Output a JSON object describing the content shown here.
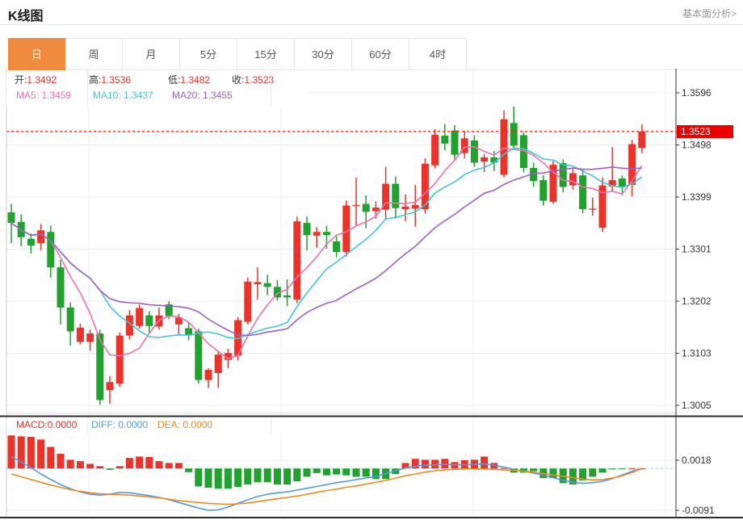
{
  "header": {
    "title": "K线图",
    "link": "基本面分析>"
  },
  "tabs": [
    {
      "label": "日",
      "active": true
    },
    {
      "label": "周",
      "active": false
    },
    {
      "label": "月",
      "active": false
    },
    {
      "label": "5分",
      "active": false
    },
    {
      "label": "15分",
      "active": false
    },
    {
      "label": "30分",
      "active": false
    },
    {
      "label": "60分",
      "active": false
    },
    {
      "label": "4时",
      "active": false
    }
  ],
  "info_bar": {
    "open_label": "开:",
    "open_value": "1.3492",
    "high_label": "高:",
    "high_value": "1.3536",
    "low_label": "低:",
    "low_value": "1.3482",
    "close_label": "收:",
    "close_value": "1.3523",
    "ma5": "MA5: 1.3459",
    "ma10": "MA10: 1.3437",
    "ma20": "MA20: 1.3455"
  },
  "macd_bar": {
    "macd": "MACD:0.0000",
    "diff": "DIFF: 0.0000",
    "dea": "DEA: 0.0000"
  },
  "price_tag": "1.3523",
  "chart_data": {
    "type": "candlestick+macd",
    "title": "K线图",
    "price_axis": {
      "ticks": [
        "1.3596",
        "1.3498",
        "1.3399",
        "1.3301",
        "1.3202",
        "1.3103",
        "1.3005"
      ],
      "max": 1.3596,
      "min": 1.3005
    },
    "macd_axis": {
      "ticks": [
        "0.0018",
        "-0.0091"
      ],
      "values": [
        0.0018,
        -0.0091
      ]
    },
    "current_price": 1.3523,
    "last_candle": {
      "open": 1.3492,
      "high": 1.3536,
      "low": 1.3482,
      "close": 1.3523
    },
    "ma_periods": [
      5,
      10,
      20
    ],
    "candles": [
      [
        1.337,
        1.3386,
        1.3312,
        1.335
      ],
      [
        1.3352,
        1.3366,
        1.3306,
        1.3323
      ],
      [
        1.332,
        1.333,
        1.3292,
        1.3307
      ],
      [
        1.3312,
        1.3348,
        1.3298,
        1.3336
      ],
      [
        1.3333,
        1.3345,
        1.3246,
        1.3266
      ],
      [
        1.3266,
        1.328,
        1.3158,
        1.319
      ],
      [
        1.319,
        1.32,
        1.3118,
        1.3145
      ],
      [
        1.3125,
        1.316,
        1.312,
        1.3152
      ],
      [
        1.3125,
        1.3148,
        1.3108,
        1.3141
      ],
      [
        1.3141,
        1.3148,
        1.3006,
        1.3015
      ],
      [
        1.3034,
        1.306,
        1.3008,
        1.3049
      ],
      [
        1.3046,
        1.3143,
        1.304,
        1.3137
      ],
      [
        1.3137,
        1.3185,
        1.313,
        1.3175
      ],
      [
        1.3155,
        1.3196,
        1.315,
        1.3189
      ],
      [
        1.3175,
        1.3183,
        1.314,
        1.3155
      ],
      [
        1.3154,
        1.319,
        1.3148,
        1.3175
      ],
      [
        1.3196,
        1.3202,
        1.3168,
        1.3174
      ],
      [
        1.3158,
        1.3178,
        1.3138,
        1.3171
      ],
      [
        1.3151,
        1.3162,
        1.3128,
        1.3137
      ],
      [
        1.3145,
        1.315,
        1.3046,
        1.3053
      ],
      [
        1.3053,
        1.3075,
        1.3038,
        1.3072
      ],
      [
        1.3066,
        1.3108,
        1.3038,
        1.3101
      ],
      [
        1.3091,
        1.3112,
        1.3075,
        1.3104
      ],
      [
        1.3099,
        1.3172,
        1.309,
        1.3166
      ],
      [
        1.3163,
        1.3247,
        1.3158,
        1.3239
      ],
      [
        1.3234,
        1.3266,
        1.3205,
        1.3238
      ],
      [
        1.3236,
        1.3252,
        1.3213,
        1.3229
      ],
      [
        1.3229,
        1.3242,
        1.3203,
        1.3209
      ],
      [
        1.3213,
        1.3243,
        1.3193,
        1.3209
      ],
      [
        1.3205,
        1.3362,
        1.3198,
        1.3353
      ],
      [
        1.335,
        1.3362,
        1.3298,
        1.3327
      ],
      [
        1.3326,
        1.3342,
        1.3303,
        1.3333
      ],
      [
        1.3333,
        1.3345,
        1.3301,
        1.3327
      ],
      [
        1.3315,
        1.3325,
        1.3285,
        1.3295
      ],
      [
        1.3295,
        1.3392,
        1.3286,
        1.3383
      ],
      [
        1.3383,
        1.3436,
        1.3345,
        1.3384
      ],
      [
        1.3386,
        1.3402,
        1.334,
        1.3371
      ],
      [
        1.3372,
        1.3391,
        1.3358,
        1.3379
      ],
      [
        1.3375,
        1.3456,
        1.3358,
        1.3424
      ],
      [
        1.3424,
        1.3438,
        1.3358,
        1.3378
      ],
      [
        1.3376,
        1.3404,
        1.3353,
        1.3381
      ],
      [
        1.3377,
        1.3422,
        1.3343,
        1.3384
      ],
      [
        1.3376,
        1.3472,
        1.3368,
        1.3462
      ],
      [
        1.3459,
        1.3527,
        1.3453,
        1.3517
      ],
      [
        1.3515,
        1.3537,
        1.3487,
        1.35
      ],
      [
        1.3525,
        1.3535,
        1.347,
        1.3479
      ],
      [
        1.3482,
        1.3524,
        1.3472,
        1.351
      ],
      [
        1.3506,
        1.3516,
        1.3456,
        1.3464
      ],
      [
        1.3466,
        1.348,
        1.3446,
        1.3474
      ],
      [
        1.3474,
        1.3486,
        1.3448,
        1.3464
      ],
      [
        1.3441,
        1.3563,
        1.3436,
        1.3546
      ],
      [
        1.3539,
        1.357,
        1.349,
        1.3496
      ],
      [
        1.3516,
        1.3522,
        1.3446,
        1.3454
      ],
      [
        1.3454,
        1.3464,
        1.3418,
        1.3429
      ],
      [
        1.3431,
        1.344,
        1.3383,
        1.3392
      ],
      [
        1.339,
        1.3467,
        1.3386,
        1.346
      ],
      [
        1.3463,
        1.347,
        1.3408,
        1.3418
      ],
      [
        1.3421,
        1.3452,
        1.3413,
        1.3444
      ],
      [
        1.344,
        1.345,
        1.3368,
        1.3376
      ],
      [
        1.3376,
        1.3398,
        1.3364,
        1.3377
      ],
      [
        1.3341,
        1.3436,
        1.3333,
        1.3421
      ],
      [
        1.3419,
        1.3493,
        1.341,
        1.3431
      ],
      [
        1.3434,
        1.344,
        1.3402,
        1.3419
      ],
      [
        1.3422,
        1.3507,
        1.34,
        1.3499
      ],
      [
        1.3492,
        1.3536,
        1.3482,
        1.3523
      ]
    ],
    "macd_histogram": [
      0.0072,
      0.007,
      0.0069,
      0.0063,
      0.0047,
      0.0032,
      0.0019,
      0.0016,
      0.001,
      0.0005,
      -0.0003,
      0.0005,
      0.0023,
      0.0026,
      0.0025,
      0.0016,
      0.0012,
      0.0012,
      -0.0008,
      -0.0039,
      -0.0042,
      -0.0044,
      -0.0044,
      -0.004,
      -0.0035,
      -0.003,
      -0.003,
      -0.0035,
      -0.0035,
      -0.0028,
      -0.0018,
      -0.001,
      -0.0015,
      -0.0013,
      -0.0015,
      -0.0018,
      -0.0018,
      -0.0023,
      -0.0023,
      -0.0012,
      0.0012,
      0.0021,
      0.0019,
      0.0019,
      0.0021,
      0.0014,
      0.0018,
      0.0019,
      0.0026,
      0.0012,
      0.0001,
      -0.0009,
      -0.0009,
      -0.0006,
      -0.0021,
      -0.0021,
      -0.0032,
      -0.0035,
      -0.0026,
      -0.0018,
      -0.0009,
      -0.0002,
      -0.0001,
      0.0,
      0.0
    ],
    "diff_line": [
      0.0026,
      0.0014,
      0.0002,
      -0.0012,
      -0.0024,
      -0.0035,
      -0.0044,
      -0.0051,
      -0.0056,
      -0.0058,
      -0.0056,
      -0.0052,
      -0.0053,
      -0.0056,
      -0.0059,
      -0.0063,
      -0.0068,
      -0.0074,
      -0.008,
      -0.0086,
      -0.0091,
      -0.009,
      -0.0084,
      -0.0076,
      -0.0068,
      -0.0061,
      -0.0056,
      -0.0053,
      -0.0051,
      -0.0047,
      -0.0043,
      -0.0039,
      -0.0035,
      -0.0031,
      -0.0028,
      -0.0024,
      -0.0021,
      -0.0017,
      -0.0011,
      -0.0005,
      0.0001,
      0.0005,
      0.0007,
      0.0008,
      0.0009,
      0.0008,
      0.0008,
      0.0009,
      0.001,
      0.0007,
      0.0003,
      -0.0002,
      -0.0006,
      -0.001,
      -0.0015,
      -0.002,
      -0.0026,
      -0.003,
      -0.0032,
      -0.0031,
      -0.0028,
      -0.0022,
      -0.0014,
      -0.0006,
      0.0
    ],
    "dea_line": [
      -0.0012,
      -0.0018,
      -0.0024,
      -0.003,
      -0.0036,
      -0.0041,
      -0.0046,
      -0.005,
      -0.0053,
      -0.0055,
      -0.0056,
      -0.0057,
      -0.0058,
      -0.006,
      -0.0062,
      -0.0064,
      -0.0067,
      -0.007,
      -0.0072,
      -0.0074,
      -0.0076,
      -0.0077,
      -0.0078,
      -0.0077,
      -0.0075,
      -0.0072,
      -0.0069,
      -0.0066,
      -0.0063,
      -0.006,
      -0.0056,
      -0.0052,
      -0.0048,
      -0.0045,
      -0.0041,
      -0.0038,
      -0.0034,
      -0.003,
      -0.0026,
      -0.0021,
      -0.0016,
      -0.0012,
      -0.0008,
      -0.0005,
      -0.0003,
      -0.0002,
      -0.0001,
      -0.0001,
      -0.0001,
      -0.0002,
      -0.0003,
      -0.0004,
      -0.0006,
      -0.0008,
      -0.0011,
      -0.0014,
      -0.0017,
      -0.002,
      -0.0023,
      -0.0025,
      -0.0024,
      -0.0021,
      -0.0016,
      -0.0009,
      0.0
    ],
    "colors": {
      "up": "#e8352b",
      "down": "#21a12e",
      "ma5": "#f56eb0",
      "ma10": "#3ec6dd",
      "ma20": "#a05fc5",
      "diff": "#4f9be8",
      "dea": "#f0891e",
      "current_line": "#ff2a22",
      "tag_bg": "#ee0000",
      "grid": "#e9eef5",
      "axis": "#333333",
      "tab_active": "#f08a3e"
    }
  }
}
